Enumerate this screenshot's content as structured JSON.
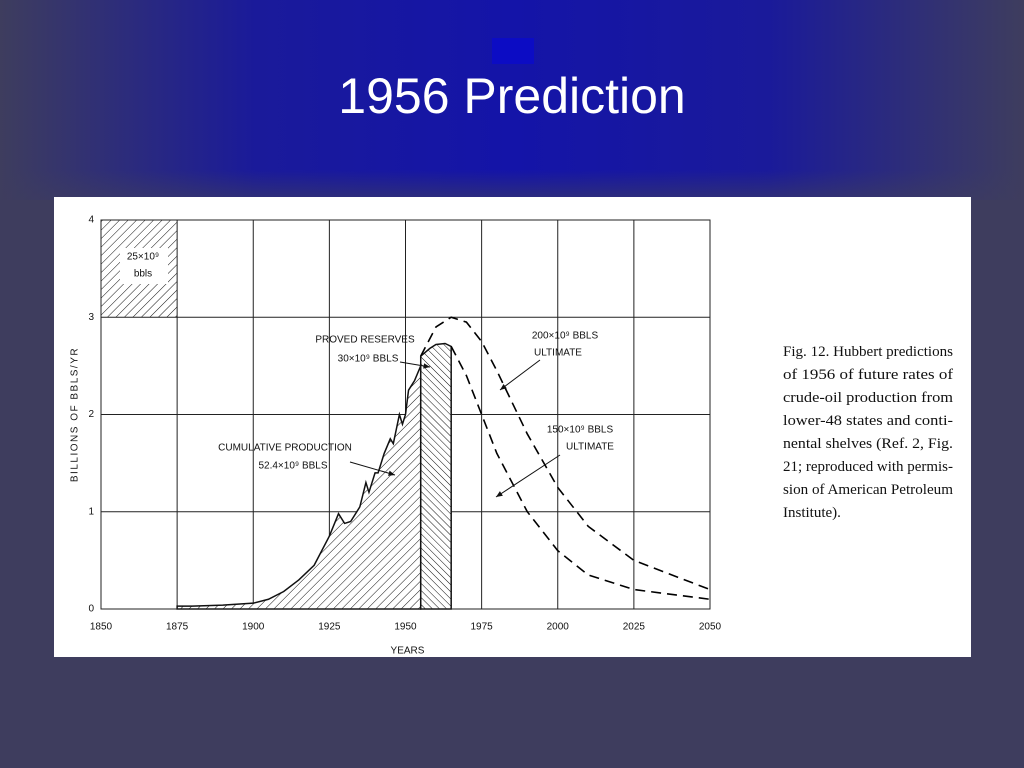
{
  "slide_title": "1956 Prediction",
  "chart_data": {
    "type": "area",
    "y_label": "BILLIONS OF BBLS/YR",
    "x_label": "YEARS",
    "xlim": [
      1850,
      2050
    ],
    "xticks": [
      1850,
      1875,
      1900,
      1925,
      1950,
      1975,
      2000,
      2025,
      2050
    ],
    "ylim": [
      0,
      4
    ],
    "yticks": [
      0,
      1,
      2,
      3,
      4
    ],
    "grid": true,
    "series": [
      {
        "style": "hatched",
        "color": "#000000",
        "x": [
          1875,
          1880,
          1890,
          1900,
          1905,
          1910,
          1915,
          1920,
          1925,
          1928,
          1930,
          1932,
          1935,
          1937,
          1938,
          1940,
          1941,
          1943,
          1945,
          1946,
          1948,
          1949,
          1950,
          1951,
          1953,
          1955
        ],
        "values": [
          0.03,
          0.03,
          0.04,
          0.06,
          0.1,
          0.18,
          0.3,
          0.45,
          0.75,
          0.98,
          0.88,
          0.9,
          1.05,
          1.3,
          1.2,
          1.4,
          1.4,
          1.6,
          1.75,
          1.7,
          2.0,
          1.9,
          2.0,
          2.25,
          2.35,
          2.5
        ]
      },
      {
        "style": "hatched-reverse",
        "color": "#000000",
        "x": [
          1955,
          1958,
          1960,
          1963,
          1965
        ],
        "values": [
          2.6,
          2.68,
          2.72,
          2.73,
          2.7
        ]
      },
      {
        "style": "dashed",
        "color": "#000000",
        "x": [
          1955,
          1960,
          1965,
          1970,
          1975,
          1980,
          1990,
          2000,
          2010,
          2025,
          2050
        ],
        "values": [
          2.6,
          2.9,
          3.0,
          2.95,
          2.75,
          2.45,
          1.8,
          1.25,
          0.85,
          0.5,
          0.2
        ]
      },
      {
        "style": "dashed",
        "color": "#000000",
        "x": [
          1965,
          1970,
          1975,
          1980,
          1990,
          2000,
          2010,
          2025,
          2050
        ],
        "values": [
          2.7,
          2.4,
          2.0,
          1.6,
          1.0,
          0.6,
          0.35,
          0.2,
          0.1
        ]
      }
    ],
    "annotations": [
      "25×10⁹",
      "bbls",
      "PROVED RESERVES",
      "30×10⁹ BBLS",
      "CUMULATIVE PRODUCTION",
      "52.4×10⁹ BBLS",
      "200×10⁹ BBLS",
      "ULTIMATE",
      "150×10⁹ BBLS",
      "ULTIMATE"
    ]
  },
  "caption": [
    "Fig. 12. Hubbert predictions",
    "of 1956 of future rates of",
    "crude-oil production from",
    "lower-48 states and conti-",
    "nental shelves (Ref. 2, Fig.",
    "21; reproduced with permis-",
    "sion of American Petroleum",
    "Institute)."
  ]
}
